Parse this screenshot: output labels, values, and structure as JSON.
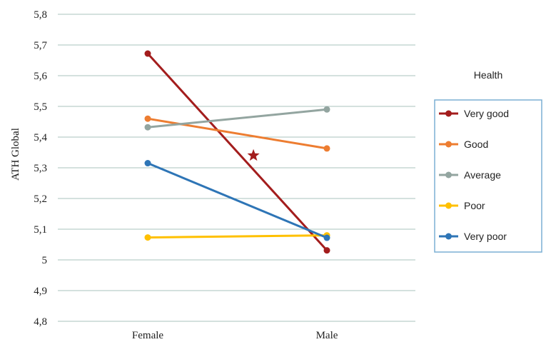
{
  "chart_data": {
    "type": "line",
    "ylabel": "ATH Global",
    "xlabel": "",
    "categories": [
      "Female",
      "Male"
    ],
    "ylim": [
      4.8,
      5.8
    ],
    "yticks": [
      4.8,
      4.9,
      5.0,
      5.1,
      5.2,
      5.3,
      5.4,
      5.5,
      5.6,
      5.7,
      5.8
    ],
    "ytick_labels": [
      "4,8",
      "4,9",
      "5",
      "5,1",
      "5,2",
      "5,3",
      "5,4",
      "5,5",
      "5,6",
      "5,7",
      "5,8"
    ],
    "grid": true,
    "legend": {
      "title": "Health",
      "position": "right"
    },
    "series": [
      {
        "name": "Very good",
        "color": "#a31d1d",
        "values": [
          5.672,
          5.031
        ]
      },
      {
        "name": "Good",
        "color": "#ed7d31",
        "values": [
          5.46,
          5.363
        ]
      },
      {
        "name": "Average",
        "color": "#93a5a0",
        "values": [
          5.432,
          5.49
        ]
      },
      {
        "name": "Poor",
        "color": "#ffc000",
        "values": [
          5.073,
          5.08
        ]
      },
      {
        "name": "Very poor",
        "color": "#2e75b6",
        "values": [
          5.315,
          5.072
        ]
      }
    ],
    "annotations": [
      {
        "type": "star-marker",
        "color": "#a31d1d",
        "x": 1.59,
        "y": 5.34
      }
    ]
  }
}
